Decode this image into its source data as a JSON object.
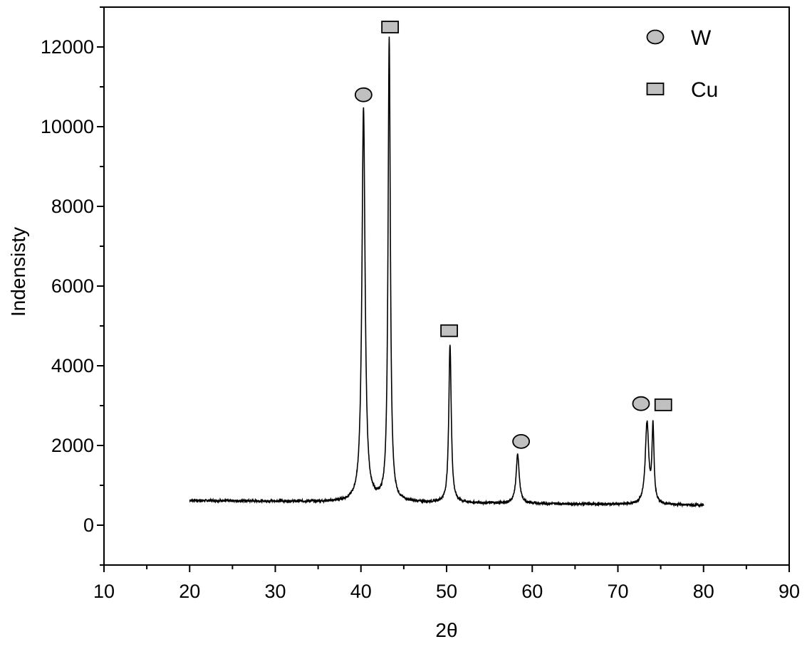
{
  "chart_data": {
    "type": "line",
    "title": "",
    "xlabel": "2θ",
    "ylabel": "Indensisty",
    "xlim": [
      10,
      90
    ],
    "ylim": [
      -1000,
      13000
    ],
    "x_ticks": [
      10,
      20,
      30,
      40,
      50,
      60,
      70,
      80,
      90
    ],
    "y_ticks": [
      0,
      2000,
      4000,
      6000,
      8000,
      10000,
      12000
    ],
    "grid": false,
    "legend_position": "top-right",
    "baseline_intensity": 520,
    "series": [
      {
        "values_description_free": true,
        "x_range": [
          20,
          80
        ],
        "peaks": [
          {
            "x": 40.3,
            "y": 10400,
            "phase": "W"
          },
          {
            "x": 43.3,
            "y": 12150,
            "phase": "Cu"
          },
          {
            "x": 50.4,
            "y": 4500,
            "phase": "Cu"
          },
          {
            "x": 58.3,
            "y": 1750,
            "phase": "W"
          },
          {
            "x": 73.4,
            "y": 2550,
            "phase": "W"
          },
          {
            "x": 74.1,
            "y": 2400,
            "phase": "Cu"
          }
        ]
      }
    ],
    "legend": [
      {
        "label": "W",
        "marker": "circle"
      },
      {
        "label": "Cu",
        "marker": "square"
      }
    ],
    "markers": [
      {
        "phase": "W",
        "shape": "circle",
        "x": 40.3,
        "y": 10800
      },
      {
        "phase": "Cu",
        "shape": "square",
        "x": 43.4,
        "y": 12500
      },
      {
        "phase": "Cu",
        "shape": "square",
        "x": 50.3,
        "y": 4880
      },
      {
        "phase": "W",
        "shape": "circle",
        "x": 58.7,
        "y": 2100
      },
      {
        "phase": "W",
        "shape": "circle",
        "x": 72.7,
        "y": 3050
      },
      {
        "phase": "Cu",
        "shape": "square",
        "x": 75.3,
        "y": 3020
      }
    ],
    "marker_fill": "#c0c0c0",
    "line_color": "#000000"
  }
}
